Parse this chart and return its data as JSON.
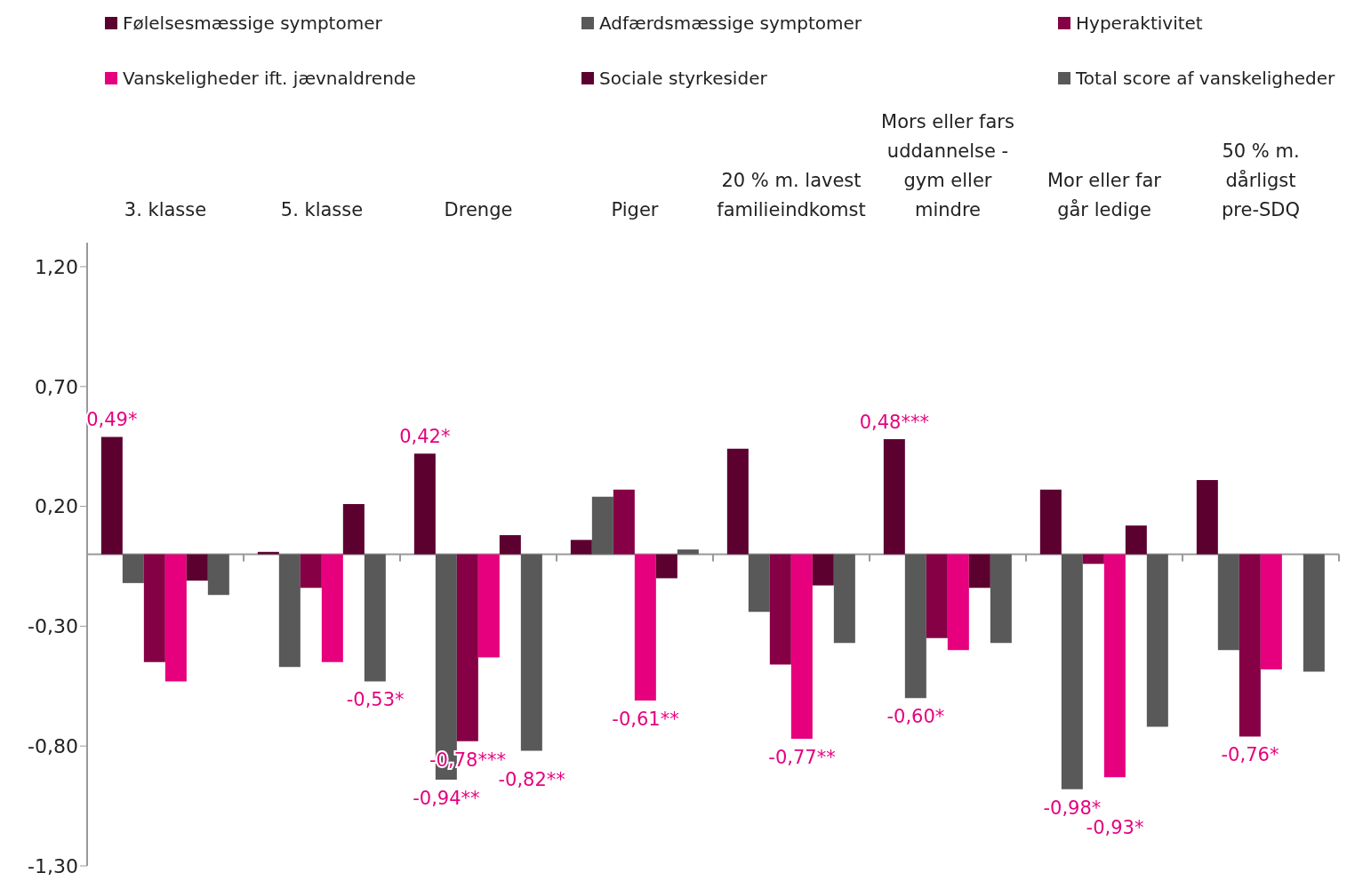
{
  "chart_data": {
    "type": "bar",
    "categories": [
      "3. klasse",
      "5. klasse",
      "Drenge",
      "Piger",
      "20 % m. lavest familieindkomst",
      "Mors eller fars uddannelse - gym eller mindre",
      "Mor eller far går ledige",
      "50 % m. dårligst pre-SDQ"
    ],
    "series": [
      {
        "name": "Følelsesmæssige symptomer",
        "color": "#5c0030",
        "values": [
          0.49,
          0.01,
          0.42,
          0.06,
          0.44,
          0.48,
          0.27,
          0.31
        ],
        "value_labels": [
          "0,49*",
          null,
          "0,42*",
          null,
          null,
          "0,48***",
          null,
          null
        ]
      },
      {
        "name": "Adfærdsmæssige symptomer",
        "color": "#595959",
        "values": [
          -0.12,
          -0.47,
          -0.94,
          0.24,
          -0.24,
          -0.6,
          -0.98,
          -0.4
        ],
        "value_labels": [
          null,
          null,
          "-0,94**",
          null,
          null,
          "-0,60*",
          "-0,98*",
          null
        ]
      },
      {
        "name": "Hyperaktivitet",
        "color": "#850045",
        "values": [
          -0.45,
          -0.14,
          -0.78,
          0.27,
          -0.46,
          -0.35,
          -0.04,
          -0.76
        ],
        "value_labels": [
          null,
          null,
          "-0,78***",
          null,
          null,
          null,
          null,
          "-0,76*"
        ]
      },
      {
        "name": "Vanskeligheder ift. jævnaldrende",
        "color": "#e6007e",
        "values": [
          -0.53,
          -0.45,
          -0.43,
          -0.61,
          -0.77,
          -0.4,
          -0.93,
          -0.48
        ],
        "value_labels": [
          null,
          null,
          null,
          "-0,61**",
          "-0,77**",
          null,
          "-0,93*",
          null
        ]
      },
      {
        "name": "Sociale styrkesider",
        "color": "#5c0030",
        "values": [
          -0.11,
          0.21,
          0.08,
          -0.1,
          -0.13,
          -0.14,
          0.12,
          0.0
        ],
        "value_labels": [
          null,
          null,
          null,
          null,
          null,
          null,
          null,
          null
        ]
      },
      {
        "name": "Total score af vanskeligheder",
        "color": "#595959",
        "values": [
          -0.17,
          -0.53,
          -0.82,
          0.02,
          -0.37,
          -0.37,
          -0.72,
          -0.49
        ],
        "value_labels": [
          null,
          "-0,53*",
          "-0,82**",
          null,
          null,
          null,
          null,
          null
        ]
      }
    ],
    "ylim": [
      -1.3,
      1.3
    ],
    "yticks": [
      {
        "value": -1.3,
        "label": "-1,30"
      },
      {
        "value": -0.8,
        "label": "-0,80"
      },
      {
        "value": -0.3,
        "label": "-0,30"
      },
      {
        "value": 0.2,
        "label": "0,20"
      },
      {
        "value": 0.7,
        "label": "0,70"
      },
      {
        "value": 1.2,
        "label": "1,20"
      }
    ],
    "legend": "top"
  }
}
